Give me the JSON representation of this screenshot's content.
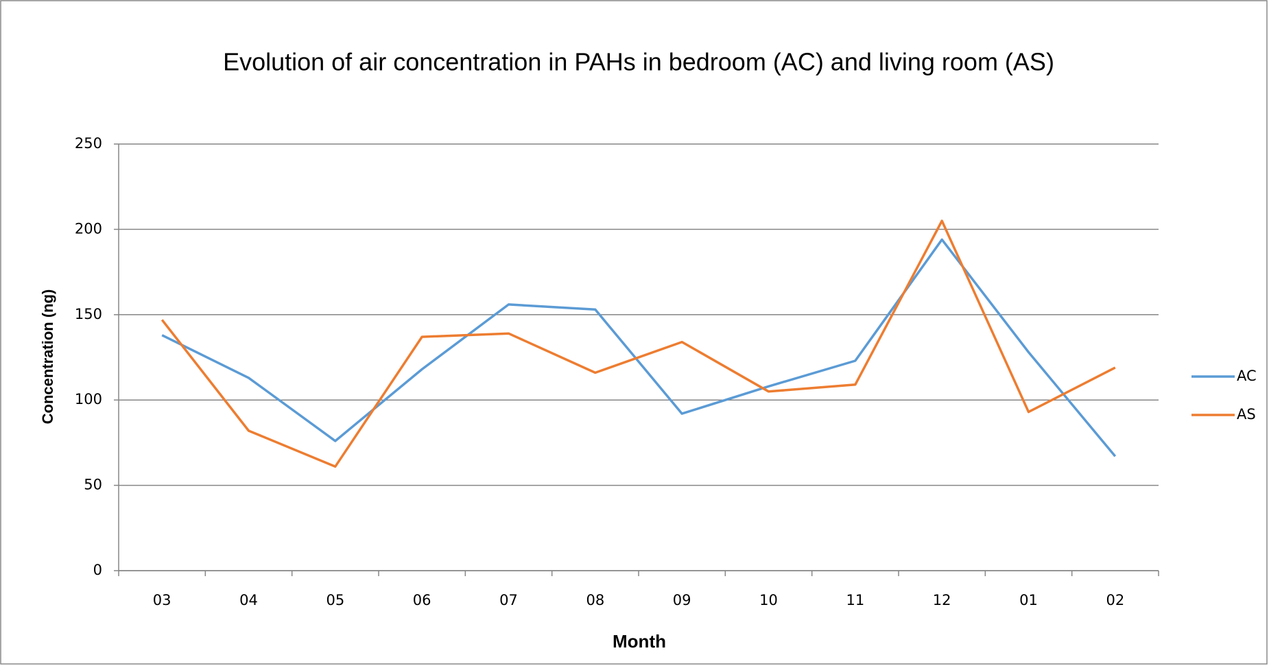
{
  "chart_data": {
    "type": "line",
    "title": "Evolution of air concentration in PAHs in bedroom (AC) and living room (AS)",
    "x_label": "Month",
    "y_label": "Concentration (ng)",
    "categories": [
      "03",
      "04",
      "05",
      "06",
      "07",
      "08",
      "09",
      "10",
      "11",
      "12",
      "01",
      "02"
    ],
    "series": [
      {
        "name": "AC",
        "color": "#5b9bd5",
        "values": [
          138,
          113,
          76,
          118,
          156,
          153,
          92,
          108,
          123,
          194,
          128,
          67
        ]
      },
      {
        "name": "AS",
        "color": "#ed7d31",
        "values": [
          147,
          82,
          61,
          137,
          139,
          116,
          134,
          105,
          109,
          205,
          93,
          119
        ]
      }
    ],
    "ylim": [
      0,
      250
    ],
    "yticks": [
      0,
      50,
      100,
      150,
      200,
      250
    ],
    "grid": true,
    "legend": "right"
  }
}
